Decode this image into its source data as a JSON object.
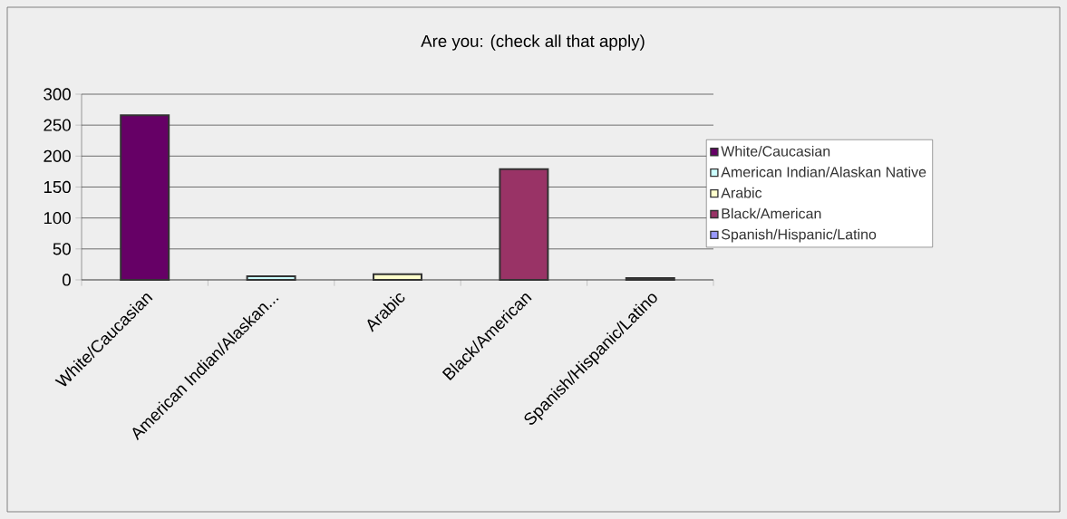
{
  "chart_data": {
    "type": "bar",
    "title": "Are you:  (check all that apply)",
    "categories": [
      "White/Caucasian",
      "American Indian/Alaskan...",
      "Arabic",
      "Black/American",
      "Spanish/Hispanic/Latino"
    ],
    "series": [
      {
        "name": "White/Caucasian",
        "color": "#660066",
        "values": [
          266,
          null,
          null,
          null,
          null
        ]
      },
      {
        "name": "American Indian/Alaskan Native",
        "color": "#ccffff",
        "values": [
          null,
          6,
          null,
          null,
          null
        ]
      },
      {
        "name": "Arabic",
        "color": "#ffffcc",
        "values": [
          null,
          null,
          9,
          null,
          null
        ]
      },
      {
        "name": "Black/American",
        "color": "#993366",
        "values": [
          null,
          null,
          null,
          179,
          null
        ]
      },
      {
        "name": "Spanish/Hispanic/Latino",
        "color": "#9999ff",
        "values": [
          null,
          null,
          null,
          null,
          3
        ]
      }
    ],
    "ylim": [
      0,
      300
    ],
    "yticks": [
      0,
      50,
      100,
      150,
      200,
      250,
      300
    ],
    "grid": "y",
    "legend": "right"
  }
}
